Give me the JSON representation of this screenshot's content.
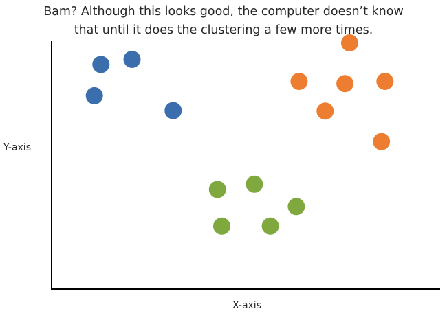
{
  "caption": {
    "line1": "Bam? Although this looks good, the computer doesn’t know",
    "line2": "that until it does the clustering a few more times."
  },
  "chart_data": {
    "type": "scatter",
    "xlabel": "X-axis",
    "ylabel": "Y-axis",
    "xlim": [
      0,
      100
    ],
    "ylim": [
      0,
      100
    ],
    "grid": false,
    "ticks": false,
    "series": [
      {
        "color": "#3a6ead",
        "points": [
          [
            12.7,
            90.6
          ],
          [
            20.7,
            92.7
          ],
          [
            11.0,
            78.0
          ],
          [
            31.3,
            72.0
          ]
        ]
      },
      {
        "color": "#ed7d31",
        "points": [
          [
            76.7,
            99.3
          ],
          [
            63.7,
            83.8
          ],
          [
            75.5,
            82.9
          ],
          [
            85.8,
            83.8
          ],
          [
            70.4,
            71.8
          ],
          [
            84.9,
            59.5
          ]
        ]
      },
      {
        "color": "#7fa83e",
        "points": [
          [
            42.7,
            40.2
          ],
          [
            52.2,
            42.3
          ],
          [
            63.0,
            33.3
          ],
          [
            43.8,
            25.4
          ],
          [
            56.3,
            25.4
          ]
        ]
      }
    ]
  }
}
